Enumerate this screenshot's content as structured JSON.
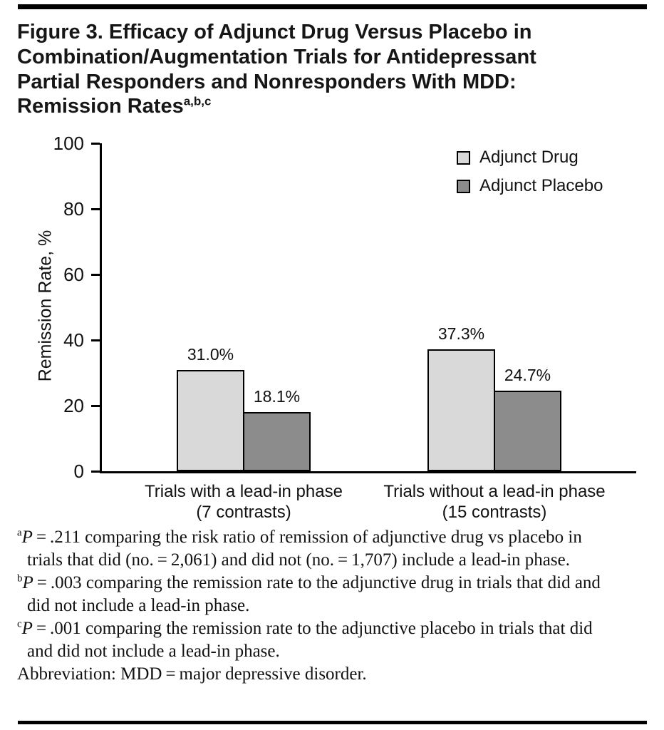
{
  "figure": {
    "title": "Figure 3. Efficacy of Adjunct Drug Versus Placebo in Combination/Augmentation Trials for Antidepressant Partial Responders and Nonresponders With MDD: Remission Rates",
    "title_superscript": "a,b,c"
  },
  "chart_data": {
    "type": "bar",
    "title": "Remission Rates",
    "ylabel": "Remission Rate, %",
    "xlabel": "",
    "ylim": [
      0,
      100
    ],
    "yticks": [
      0,
      20,
      40,
      60,
      80,
      100
    ],
    "grid": false,
    "legend_position": "top-right",
    "categories": [
      {
        "label": "Trials with a lead-in phase",
        "sub": "(7 contrasts)"
      },
      {
        "label": "Trials without a lead-in phase",
        "sub": "(15 contrasts)"
      }
    ],
    "series": [
      {
        "name": "Adjunct Drug",
        "color": "#d9d9d9",
        "values": [
          31.0,
          37.3
        ],
        "value_labels": [
          "31.0%",
          "37.3%"
        ]
      },
      {
        "name": "Adjunct Placebo",
        "color": "#8c8c8c",
        "values": [
          18.1,
          24.7
        ],
        "value_labels": [
          "18.1%",
          "24.7%"
        ]
      }
    ]
  },
  "footnotes": [
    {
      "sup": "a",
      "lead": "P",
      "text": " = .211 comparing the risk ratio of remission of adjunctive drug vs placebo in trials that did (no. = 2,061) and did not (no. = 1,707) include a lead-in phase."
    },
    {
      "sup": "b",
      "lead": "P",
      "text": " = .003 comparing the remission rate to the adjunctive drug in trials that did and did not include a lead-in phase."
    },
    {
      "sup": "c",
      "lead": "P",
      "text": " = .001 comparing the remission rate to the adjunctive placebo in trials that did and did not include a lead-in phase."
    }
  ],
  "abbreviation": "Abbreviation: MDD = major depressive disorder."
}
